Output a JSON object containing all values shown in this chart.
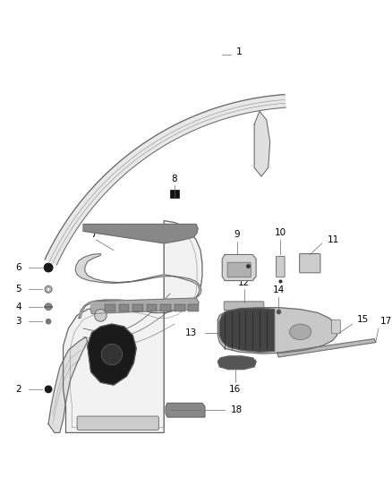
{
  "background_color": "#ffffff",
  "line_color": "#666666",
  "text_color": "#000000",
  "fig_width": 4.38,
  "fig_height": 5.33,
  "dpi": 100
}
